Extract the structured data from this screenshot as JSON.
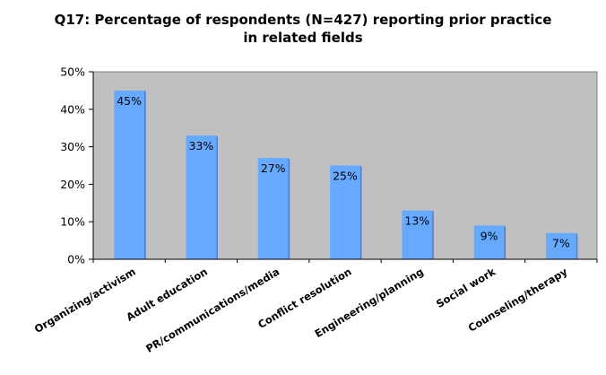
{
  "chart_data": {
    "type": "bar",
    "title": "Q17: Percentage of respondents (N=427) reporting prior practice in related fields",
    "title_lines": [
      "Q17: Percentage of respondents (N=427) reporting prior practice",
      "in related fields"
    ],
    "categories": [
      "Organizing/activism",
      "Adult education",
      "PR/communications/media",
      "Conflict resolution",
      "Engineering/planning",
      "Social work",
      "Counseling/therapy"
    ],
    "values": [
      45,
      33,
      27,
      25,
      13,
      9,
      7
    ],
    "data_labels": [
      "45%",
      "33%",
      "27%",
      "25%",
      "13%",
      "9%",
      "7%"
    ],
    "y_ticks": [
      0,
      10,
      20,
      30,
      40,
      50
    ],
    "y_tick_labels": [
      "0%",
      "10%",
      "20%",
      "30%",
      "40%",
      "50%"
    ],
    "ylim": [
      0,
      50
    ],
    "xlabel": "",
    "ylabel": "",
    "grid": false,
    "colors": {
      "bar": "#66aaff",
      "bar_shade": "#3f7fd6",
      "plot_background": "#c0c0c0",
      "axis": "#000000"
    }
  }
}
